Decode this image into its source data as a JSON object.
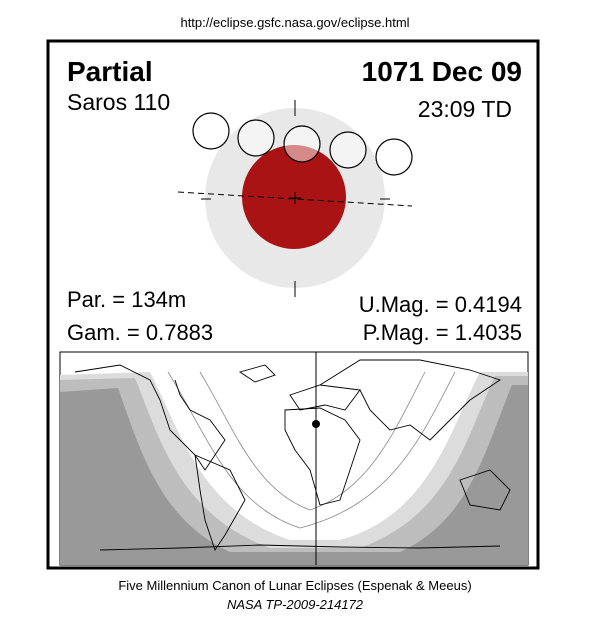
{
  "header": {
    "url": "http://eclipse.gsfc.nasa.gov/eclipse.html"
  },
  "panel": {
    "eclipse_type": "Partial",
    "date": "1071 Dec 09",
    "saros": "Saros 110",
    "time": "23:09 TD",
    "par": "Par. = 134m",
    "gam": "Gam. = 0.7883",
    "umag": "U.Mag. = 0.4194",
    "pmag": "P.Mag. = 1.4035"
  },
  "footer": {
    "line1": "Five Millennium Canon of Lunar Eclipses (Espenak & Meeus)",
    "line2": "NASA TP-2009-214172"
  }
}
